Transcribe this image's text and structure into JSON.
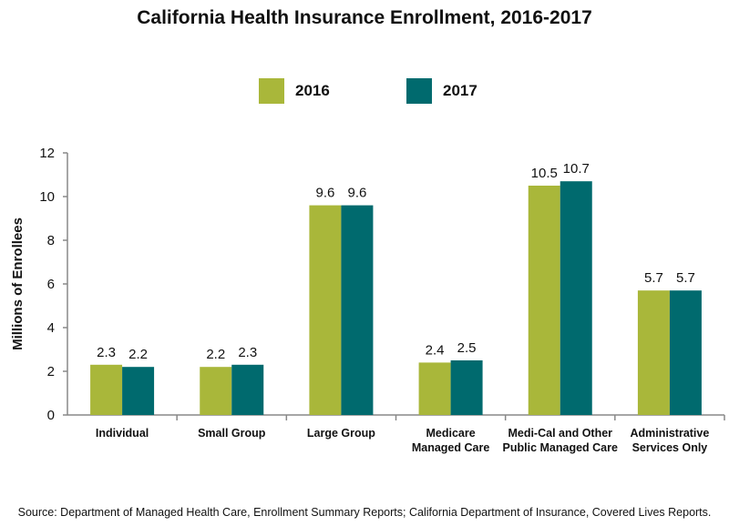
{
  "title": "California Health Insurance Enrollment, 2016-2017",
  "source": "Source:  Department of Managed Health Care, Enrollment Summary Reports; California Department of Insurance, Covered Lives Reports.",
  "colors": {
    "s2016": "#a9b73a",
    "s2017": "#006a6e",
    "axis": "#888888"
  },
  "chart_data": {
    "type": "bar",
    "title": "California Health Insurance Enrollment, 2016-2017",
    "xlabel": "",
    "ylabel": "Millions of Enrollees",
    "ylim": [
      0,
      12
    ],
    "yticks": [
      "0",
      "2",
      "4",
      "6",
      "8",
      "10",
      "12"
    ],
    "grid": false,
    "legend_position": "top",
    "categories": [
      [
        "Individual"
      ],
      [
        "Small Group"
      ],
      [
        "Large Group"
      ],
      [
        "Medicare",
        "Managed Care"
      ],
      [
        "Medi-Cal and Other",
        "Public Managed Care"
      ],
      [
        "Administrative",
        "Services Only"
      ]
    ],
    "series": [
      {
        "name": "2016",
        "values": [
          2.3,
          2.2,
          9.6,
          2.4,
          10.5,
          5.7
        ]
      },
      {
        "name": "2017",
        "values": [
          2.2,
          2.3,
          9.6,
          2.5,
          10.7,
          5.7
        ]
      }
    ]
  }
}
